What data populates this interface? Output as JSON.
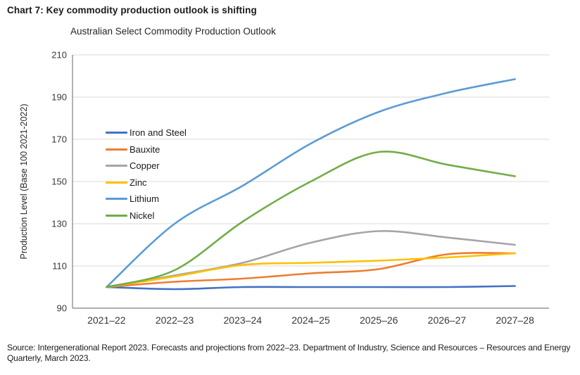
{
  "page": {
    "heading": "Chart 7: Key commodity production outlook is shifting",
    "source": "Source: Intergenerational Report 2023. Forecasts and projections from 2022–23. Department of Industry, Science and Resources – Resources and Energy Quarterly, March 2023."
  },
  "chart_data": {
    "type": "line",
    "title": "Australian Select Commodity Production Outlook",
    "ylabel": "Production Level (Base 100 2021-2022)",
    "xlabel": "",
    "categories": [
      "2021–22",
      "2022–23",
      "2023–24",
      "2024–25",
      "2025–26",
      "2026–27",
      "2027–28"
    ],
    "ylim": [
      90,
      210
    ],
    "ytick_step": 20,
    "grid": "horizontal",
    "gridline_color": "#d9d9d9",
    "axis_line_color": "#808080",
    "legend_position": "inside-upper-left",
    "smoothed_lines": true,
    "series": [
      {
        "name": "Iron and Steel",
        "color": "#4472C4",
        "values": [
          100,
          99,
          100,
          100,
          100,
          100,
          100.5
        ]
      },
      {
        "name": "Bauxite",
        "color": "#ED7D31",
        "values": [
          100,
          102.5,
          104,
          106.5,
          108.5,
          115.5,
          116
        ]
      },
      {
        "name": "Copper",
        "color": "#A5A5A5",
        "values": [
          100,
          105.5,
          111.5,
          121,
          126.5,
          123.5,
          120
        ]
      },
      {
        "name": "Zinc",
        "color": "#FFC000",
        "values": [
          100,
          105,
          110.5,
          111.5,
          112.5,
          114,
          116
        ]
      },
      {
        "name": "Lithium",
        "color": "#5B9BD5",
        "values": [
          100,
          130,
          148,
          168,
          183,
          192,
          198.5
        ]
      },
      {
        "name": "Nickel",
        "color": "#70AD47",
        "values": [
          100,
          108,
          131,
          150,
          164,
          158,
          152.5
        ]
      }
    ]
  }
}
